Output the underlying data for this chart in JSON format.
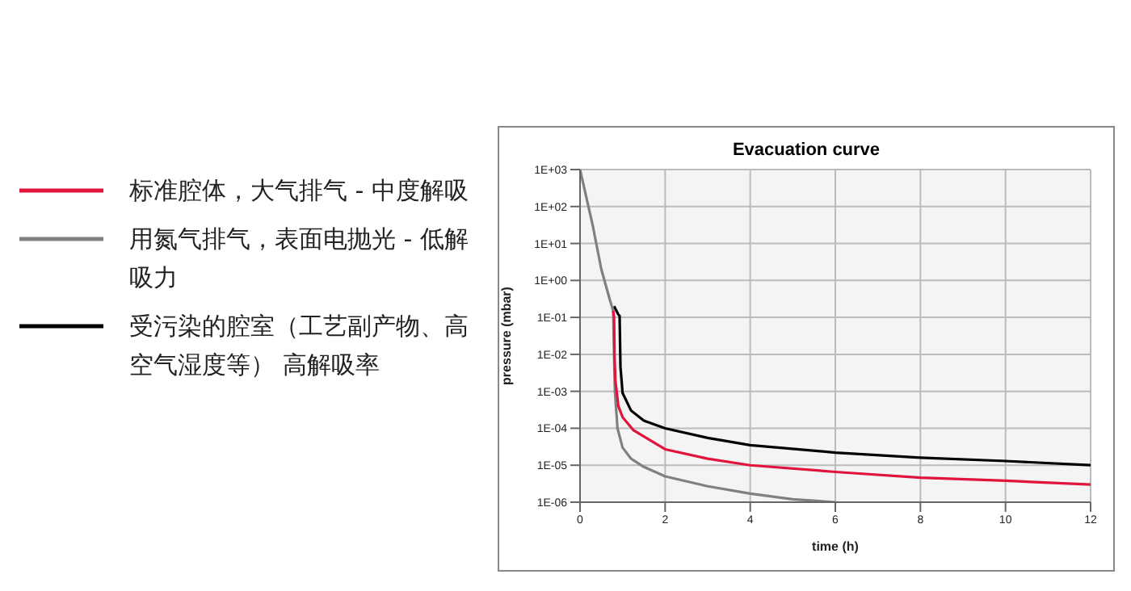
{
  "chart_data": {
    "type": "line",
    "title": "Evacuation curve",
    "xlabel": "time (h)",
    "ylabel": "pressure (mbar)",
    "log": "y",
    "grid": true,
    "legend": "left",
    "marker": "none",
    "line_style": "solid",
    "xlim": [
      0,
      12
    ],
    "xticks": [
      0,
      2,
      4,
      6,
      8,
      10,
      12
    ],
    "ylim": [
      1e-06,
      1000
    ],
    "yticks": [
      {
        "value": 1000,
        "label": "1E+03"
      },
      {
        "value": 100,
        "label": "1E+02"
      },
      {
        "value": 10,
        "label": "1E+01"
      },
      {
        "value": 1,
        "label": "1E+00"
      },
      {
        "value": 0.1,
        "label": "1E-01"
      },
      {
        "value": 0.01,
        "label": "1E-02"
      },
      {
        "value": 0.001,
        "label": "1E-03"
      },
      {
        "value": 0.0001,
        "label": "1E-04"
      },
      {
        "value": 1e-05,
        "label": "1E-05"
      },
      {
        "value": 1e-06,
        "label": "1E-06"
      }
    ],
    "series": [
      {
        "name": "标准腔体，大气排气 - 中度解吸",
        "color": "#e0143c",
        "x": [
          0.78,
          0.8,
          0.81,
          0.83,
          0.9,
          1.0,
          1.25,
          1.5,
          2,
          3,
          4,
          6,
          8,
          10,
          12
        ],
        "values": [
          0.15,
          0.1,
          0.01,
          0.002,
          0.0004,
          0.0002,
          9e-05,
          6e-05,
          2.7e-05,
          1.5e-05,
          1e-05,
          6.6e-06,
          4.6e-06,
          3.8e-06,
          3e-06
        ]
      },
      {
        "name": "用氮气排气，表面电抛光 - 低解吸力",
        "color": "#808080",
        "x": [
          0,
          0.3,
          0.5,
          0.7,
          0.78,
          0.8,
          0.82,
          0.88,
          1.0,
          1.2,
          1.5,
          2,
          3,
          4,
          5,
          6
        ],
        "values": [
          1000,
          30,
          2,
          0.3,
          0.15,
          0.01,
          0.001,
          0.0001,
          3e-05,
          1.5e-05,
          9e-06,
          5e-06,
          2.7e-06,
          1.7e-06,
          1.2e-06,
          1e-06
        ]
      },
      {
        "name": "受污染的腔室（工艺副产物、高空气湿度等） 高解吸率",
        "color": "#000000",
        "x": [
          0.8,
          0.9,
          0.93,
          0.95,
          1.0,
          1.2,
          1.5,
          2,
          3,
          4,
          6,
          8,
          10,
          12
        ],
        "values": [
          0.2,
          0.12,
          0.11,
          0.0046,
          0.0009,
          0.0003,
          0.00016,
          0.0001,
          5.5e-05,
          3.5e-05,
          2.2e-05,
          1.6e-05,
          1.3e-05,
          1e-05
        ]
      }
    ]
  }
}
